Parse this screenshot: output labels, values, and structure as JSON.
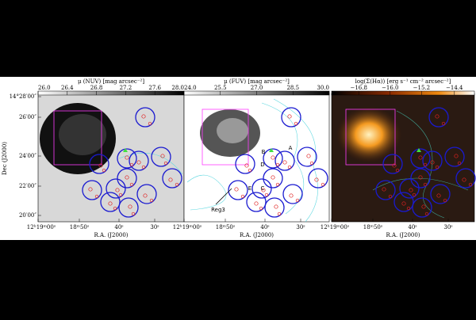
{
  "panels": [
    {
      "colorbar_label": "μ (NUV) [mag arcsec⁻²]",
      "colorbar_ticks": [
        "26.0",
        "26.4",
        "26.8",
        "27.2",
        "27.6",
        "28.0"
      ],
      "x_ticks": [
        "12ʰ19ᵐ00ˢ",
        "18ᵐ50ˢ",
        "40ˢ",
        "30ˢ"
      ],
      "x_label": "R.A. (J2000)"
    },
    {
      "colorbar_label": "μ (FUV) [mag arcsec⁻²]",
      "colorbar_ticks": [
        "24.0",
        "25.5",
        "27.0",
        "28.5",
        "30.0"
      ],
      "x_ticks": [
        "12ʰ19ᵐ00ˢ",
        "18ᵐ50ˢ",
        "40ˢ",
        "30ˢ"
      ],
      "x_label": "R.A. (J2000)",
      "region_labels": [
        "A",
        "B",
        "D",
        "E",
        "C",
        "Reg3"
      ]
    },
    {
      "colorbar_label": "log(Σ(Hα)) [erg s⁻¹ cm⁻² arcsec⁻²]",
      "colorbar_ticks": [
        "−16.8",
        "−16.0",
        "−15.2",
        "−14.4"
      ],
      "x_ticks": [
        "12ʰ19ᵐ00ˢ",
        "18ᵐ50ˢ",
        "40ˢ",
        "30ˢ"
      ],
      "x_label": "R.A. (J2000)"
    }
  ],
  "y_ticks": [
    "14°28′00″",
    "26′00″",
    "24′00″",
    "22′00″",
    "20′00″"
  ],
  "y_label": "Dec (J2000)"
}
